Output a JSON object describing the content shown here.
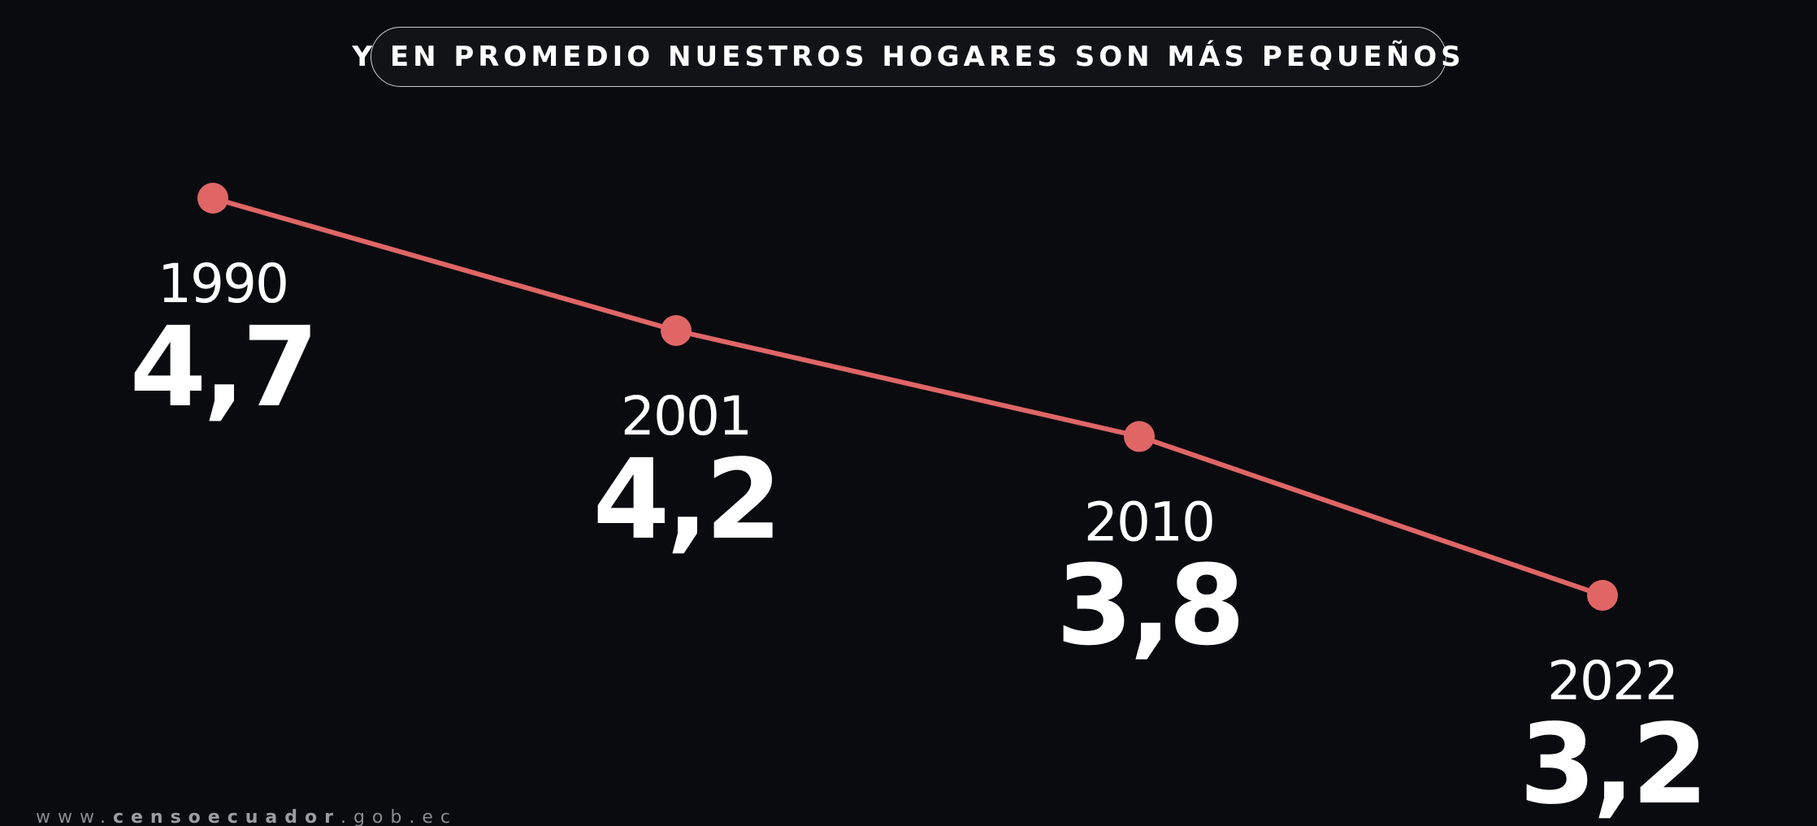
{
  "header": {
    "title": "Y EN PROMEDIO NUESTROS HOGARES SON MÁS PEQUEÑOS"
  },
  "chart_data": {
    "type": "line",
    "categories": [
      "1990",
      "2001",
      "2010",
      "2022"
    ],
    "values": [
      4.7,
      4.2,
      3.8,
      3.2
    ],
    "value_labels": [
      "4,7",
      "4,2",
      "3,8",
      "3,2"
    ],
    "title": "Y EN PROMEDIO NUESTROS HOGARES SON MÁS PEQUEÑOS",
    "xlabel": "",
    "ylabel": "",
    "grid": false,
    "legend": "none",
    "line_color": "#e06666"
  },
  "footer": {
    "url_prefix": "www.",
    "url_domain": "censoecuador",
    "url_suffix": ".gob.ec"
  }
}
